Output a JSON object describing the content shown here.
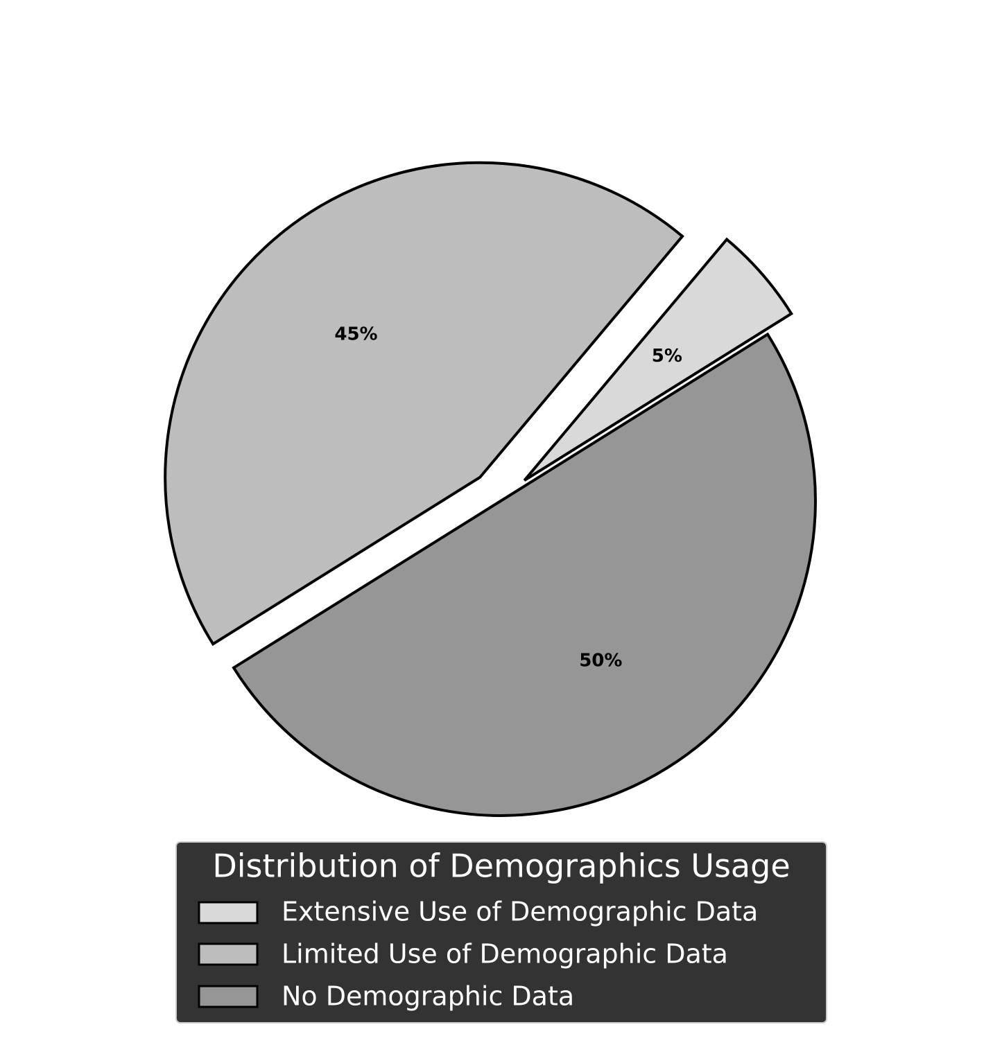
{
  "chart_data": {
    "type": "pie",
    "legend_title": "Distribution of Demographics Usage",
    "legend_placement": "bottom",
    "slices": [
      {
        "label": "Extensive Use of Demographic Data",
        "value": 5,
        "pct_label": "5%",
        "color": "#d9d9d9",
        "exploded": true
      },
      {
        "label": "Limited Use of Demographic Data",
        "value": 45,
        "pct_label": "45%",
        "color": "#bdbdbd",
        "exploded": true
      },
      {
        "label": "No Demographic Data",
        "value": 50,
        "pct_label": "50%",
        "color": "#969696",
        "exploded": false
      }
    ],
    "edge_color": "#000000",
    "legend_background": "#333333",
    "legend_text_color": "#ffffff"
  }
}
